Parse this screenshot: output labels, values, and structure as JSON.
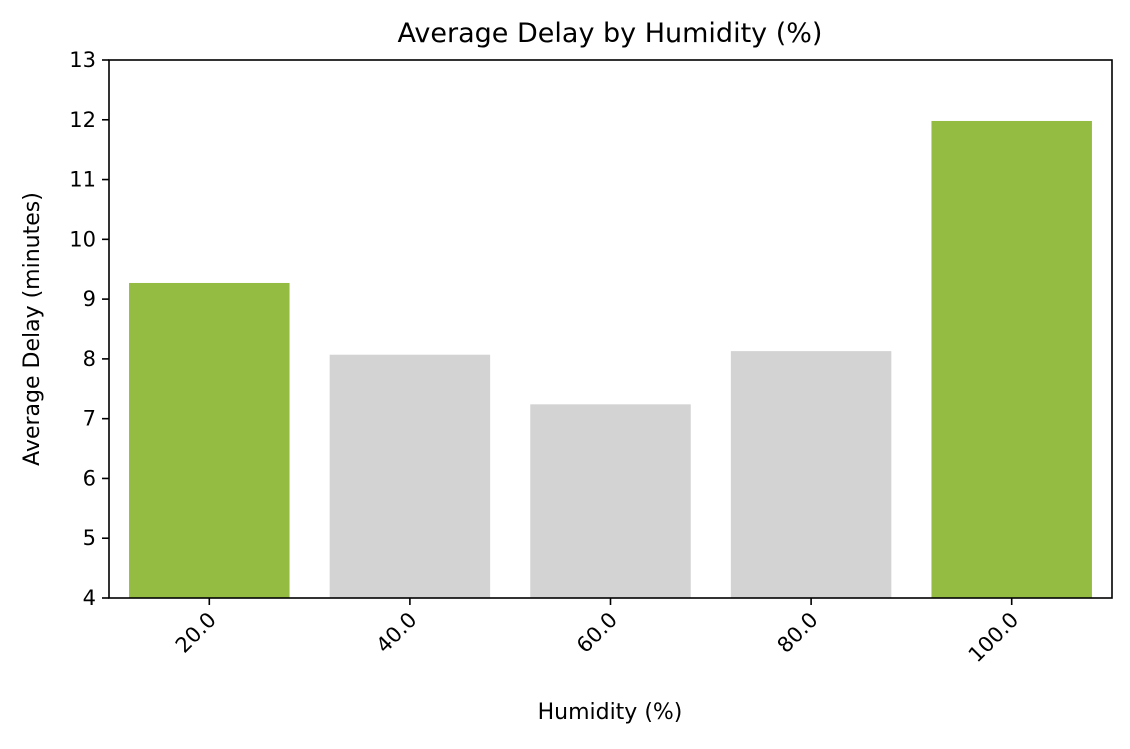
{
  "chart_data": {
    "type": "bar",
    "title": "Average Delay by Humidity (%)",
    "xlabel": "Humidity (%)",
    "ylabel": "Average Delay (minutes)",
    "categories": [
      "20.0",
      "40.0",
      "60.0",
      "80.0",
      "100.0"
    ],
    "values": [
      9.27,
      8.07,
      7.24,
      8.13,
      11.98
    ],
    "highlighted": [
      true,
      false,
      false,
      false,
      true
    ],
    "colors": {
      "highlight": "#94bb42",
      "default": "#d3d3d3"
    },
    "ylim": [
      4,
      13
    ],
    "yticks": [
      "4",
      "5",
      "6",
      "7",
      "8",
      "9",
      "10",
      "11",
      "12",
      "13"
    ],
    "grid": false,
    "legend": "none",
    "xtick_rotation": 45
  }
}
